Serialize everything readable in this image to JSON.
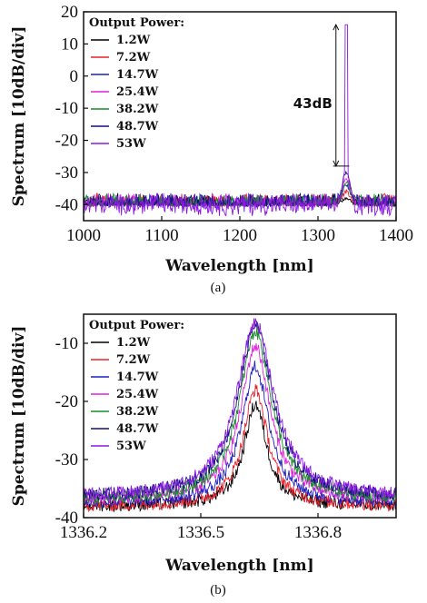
{
  "series_colors": [
    "#000000",
    "#e8202a",
    "#1f1fbf",
    "#e020e0",
    "#1a8a2a",
    "#10107a",
    "#8a1ae0"
  ],
  "chart_data": [
    {
      "type": "line",
      "caption": "(a)",
      "xlabel": "Wavelength [nm]",
      "ylabel": "Spectrum [10dB/div]",
      "xlim": [
        1000,
        1400
      ],
      "ylim": [
        -45,
        20
      ],
      "xticks": [
        1000,
        1100,
        1200,
        1300,
        1400
      ],
      "yticks": [
        -40,
        -30,
        -20,
        -10,
        0,
        10,
        20
      ],
      "legend_title": "Output Power:",
      "legend_position": "top-left",
      "annotation": {
        "text": "43dB",
        "x": 1323,
        "y_from": -28,
        "y_to": 16
      },
      "series": [
        {
          "name": "1.2W",
          "noise_floor": -40,
          "peak_x": 1336,
          "peak_y": -38
        },
        {
          "name": "7.2W",
          "noise_floor": -40,
          "peak_x": 1336,
          "peak_y": -36
        },
        {
          "name": "14.7W",
          "noise_floor": -40,
          "peak_x": 1336,
          "peak_y": -34
        },
        {
          "name": "25.4W",
          "noise_floor": -40,
          "peak_x": 1336,
          "peak_y": -32
        },
        {
          "name": "38.2W",
          "noise_floor": -40,
          "peak_x": 1336,
          "peak_y": -33
        },
        {
          "name": "48.7W",
          "noise_floor": -40,
          "peak_x": 1336,
          "peak_y": -30
        },
        {
          "name": "53W",
          "noise_floor": -40,
          "peak_x": 1336,
          "peak_y": 16
        }
      ]
    },
    {
      "type": "line",
      "caption": "(b)",
      "xlabel": "Wavelength [nm]",
      "ylabel": "Spectrum [10dB/div]",
      "xlim": [
        1336.2,
        1337.0
      ],
      "ylim": [
        -40,
        -5
      ],
      "xticks": [
        1336.2,
        1336.5,
        1336.8
      ],
      "xtick_labels": [
        "1336.2",
        "1336.5",
        "1336.8"
      ],
      "yticks": [
        -40,
        -30,
        -20,
        -10
      ],
      "legend_title": "Output Power:",
      "legend_position": "top-left",
      "series": [
        {
          "name": "1.2W",
          "center": 1336.64,
          "peak_y": -20.5,
          "width": 0.035,
          "noise_floor": -38
        },
        {
          "name": "7.2W",
          "center": 1336.64,
          "peak_y": -18,
          "width": 0.038,
          "noise_floor": -38
        },
        {
          "name": "14.7W",
          "center": 1336.64,
          "peak_y": -14,
          "width": 0.042,
          "noise_floor": -37.5
        },
        {
          "name": "25.4W",
          "center": 1336.64,
          "peak_y": -10.5,
          "width": 0.046,
          "noise_floor": -37
        },
        {
          "name": "38.2W",
          "center": 1336.64,
          "peak_y": -8,
          "width": 0.05,
          "noise_floor": -37
        },
        {
          "name": "48.7W",
          "center": 1336.64,
          "peak_y": -7,
          "width": 0.054,
          "noise_floor": -36.5
        },
        {
          "name": "53W",
          "center": 1336.64,
          "peak_y": -6.5,
          "width": 0.058,
          "noise_floor": -36.5
        }
      ]
    }
  ]
}
